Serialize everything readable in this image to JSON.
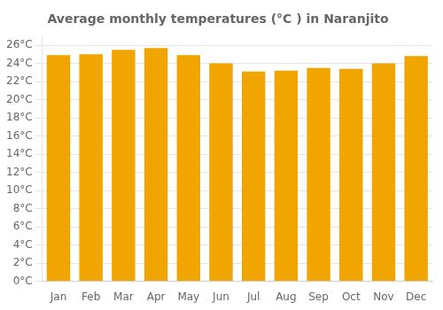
{
  "chart_data": {
    "type": "bar",
    "title": "Average monthly temperatures (°C ) in Naranjito",
    "categories": [
      "Jan",
      "Feb",
      "Mar",
      "Apr",
      "May",
      "Jun",
      "Jul",
      "Aug",
      "Sep",
      "Oct",
      "Nov",
      "Dec"
    ],
    "values": [
      24.9,
      25.0,
      25.5,
      25.7,
      24.9,
      24.0,
      23.1,
      23.2,
      23.5,
      23.4,
      24.0,
      24.8
    ],
    "color": "#F0A500",
    "ylim": [
      0,
      27
    ],
    "yticks": [
      {
        "value": 0,
        "label": "0°C"
      },
      {
        "value": 2,
        "label": "2°C"
      },
      {
        "value": 4,
        "label": "4°C"
      },
      {
        "value": 6,
        "label": "6°C"
      },
      {
        "value": 8,
        "label": "8°C"
      },
      {
        "value": 10,
        "label": "10°C"
      },
      {
        "value": 12,
        "label": "12°C"
      },
      {
        "value": 14,
        "label": "14°C"
      },
      {
        "value": 16,
        "label": "16°C"
      },
      {
        "value": 18,
        "label": "18°C"
      },
      {
        "value": 20,
        "label": "20°C"
      },
      {
        "value": 22,
        "label": "22°C"
      },
      {
        "value": 24,
        "label": "24°C"
      },
      {
        "value": 26,
        "label": "26°C"
      }
    ],
    "grid": true
  }
}
